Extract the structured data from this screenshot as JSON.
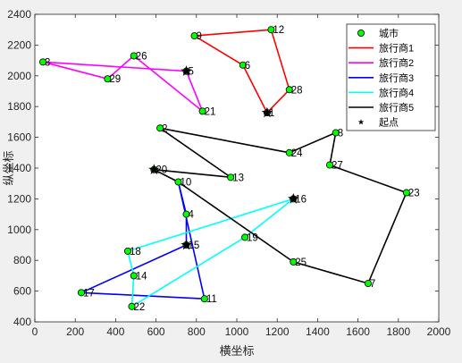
{
  "chart_data": {
    "type": "scatter",
    "xlabel": "横坐标",
    "ylabel": "纵坐标",
    "xlim": [
      0,
      2000
    ],
    "ylim": [
      400,
      2400
    ],
    "xticks": [
      0,
      200,
      400,
      600,
      800,
      1000,
      1200,
      1400,
      1600,
      1800,
      2000
    ],
    "yticks": [
      400,
      600,
      800,
      1000,
      1200,
      1400,
      1600,
      1800,
      2000,
      2200,
      2400
    ],
    "grid": false,
    "legend_position": "top-right",
    "cities": [
      {
        "id": "1",
        "x": 1150,
        "y": 1760
      },
      {
        "id": "2",
        "x": 620,
        "y": 1660
      },
      {
        "id": "3",
        "x": 40,
        "y": 2090
      },
      {
        "id": "4",
        "x": 750,
        "y": 1100
      },
      {
        "id": "5",
        "x": 750,
        "y": 2030
      },
      {
        "id": "6",
        "x": 1030,
        "y": 2070
      },
      {
        "id": "7",
        "x": 1650,
        "y": 650
      },
      {
        "id": "8",
        "x": 1490,
        "y": 1630
      },
      {
        "id": "9",
        "x": 790,
        "y": 2260
      },
      {
        "id": "10",
        "x": 710,
        "y": 1310
      },
      {
        "id": "11",
        "x": 840,
        "y": 550
      },
      {
        "id": "12",
        "x": 1170,
        "y": 2300
      },
      {
        "id": "13",
        "x": 970,
        "y": 1340
      },
      {
        "id": "14",
        "x": 490,
        "y": 700
      },
      {
        "id": "15",
        "x": 750,
        "y": 900
      },
      {
        "id": "16",
        "x": 1280,
        "y": 1200
      },
      {
        "id": "17",
        "x": 230,
        "y": 590
      },
      {
        "id": "18",
        "x": 460,
        "y": 860
      },
      {
        "id": "19",
        "x": 1040,
        "y": 950
      },
      {
        "id": "20",
        "x": 590,
        "y": 1390
      },
      {
        "id": "21",
        "x": 830,
        "y": 1770
      },
      {
        "id": "22",
        "x": 480,
        "y": 500
      },
      {
        "id": "23",
        "x": 1840,
        "y": 1240
      },
      {
        "id": "24",
        "x": 1260,
        "y": 1500
      },
      {
        "id": "25",
        "x": 1280,
        "y": 790
      },
      {
        "id": "26",
        "x": 490,
        "y": 2130
      },
      {
        "id": "27",
        "x": 1460,
        "y": 1420
      },
      {
        "id": "28",
        "x": 1260,
        "y": 1910
      },
      {
        "id": "29",
        "x": 360,
        "y": 1980
      }
    ],
    "series": [
      {
        "name": "城市",
        "kind": "markers",
        "color": "#00ff00"
      },
      {
        "name": "旅行商1",
        "color": "#ff0000",
        "route": [
          "1",
          "6",
          "9",
          "12",
          "28",
          "1"
        ]
      },
      {
        "name": "旅行商2",
        "color": "#ff00ff",
        "route": [
          "5",
          "3",
          "29",
          "26",
          "21",
          "5"
        ]
      },
      {
        "name": "旅行商3",
        "color": "#0000ff",
        "route": [
          "15",
          "4",
          "10",
          "11",
          "17",
          "15"
        ]
      },
      {
        "name": "旅行商4",
        "color": "#00ffff",
        "route": [
          "16",
          "18",
          "14",
          "22",
          "19",
          "16"
        ]
      },
      {
        "name": "旅行商5",
        "color": "#000000",
        "route": [
          "20",
          "13",
          "2",
          "24",
          "8",
          "27",
          "23",
          "7",
          "25",
          "10",
          "20"
        ]
      },
      {
        "name": "起点",
        "kind": "start-markers",
        "color": "#000000",
        "points": [
          "1",
          "5",
          "15",
          "16",
          "20"
        ]
      }
    ]
  }
}
